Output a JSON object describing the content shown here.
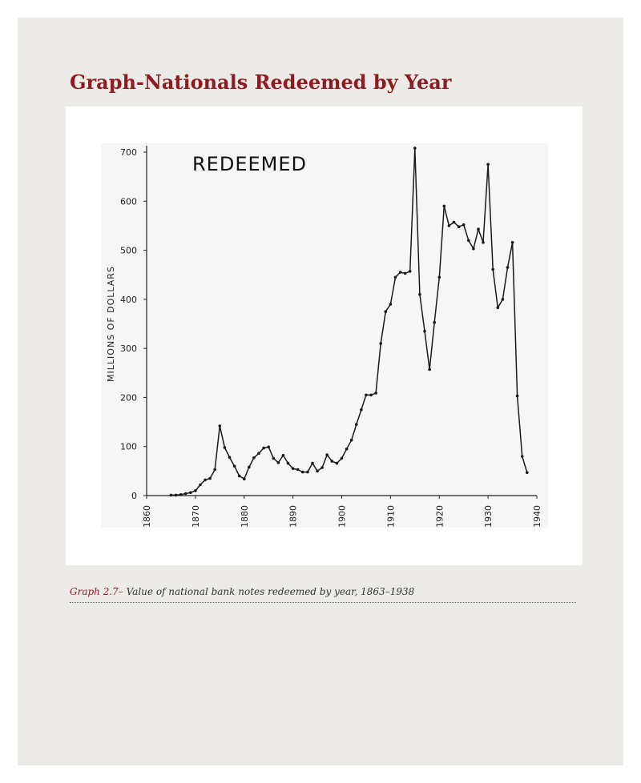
{
  "page": {
    "title": "Graph-Nationals Redeemed by Year",
    "caption_label": "Graph 2.7–",
    "caption_text": " Value of national bank notes redeemed by year, 1863–1938",
    "accent_color": "#8e1b1f",
    "panel_color": "#ecebe7"
  },
  "chart_data": {
    "type": "line",
    "title": "REDEEMED",
    "ylabel": "MILLIONS OF DOLLARS",
    "xlabel": "",
    "xlim": [
      1860,
      1940
    ],
    "ylim": [
      0,
      700
    ],
    "xticks": [
      1860,
      1870,
      1880,
      1890,
      1900,
      1910,
      1920,
      1930,
      1940
    ],
    "yticks": [
      0,
      100,
      200,
      300,
      400,
      500,
      600,
      700
    ],
    "grid": false,
    "series": [
      {
        "x": [
          1865,
          1866,
          1867,
          1868,
          1869,
          1870,
          1871,
          1872,
          1873,
          1874,
          1875,
          1876,
          1877,
          1878,
          1879,
          1880,
          1881,
          1882,
          1883,
          1884,
          1885,
          1886,
          1887,
          1888,
          1889,
          1890,
          1891,
          1892,
          1893,
          1894,
          1895,
          1896,
          1897,
          1898,
          1899,
          1900,
          1901,
          1902,
          1903,
          1904,
          1905,
          1906,
          1907,
          1908,
          1909,
          1910,
          1911,
          1912,
          1913,
          1914,
          1915,
          1916,
          1917,
          1918,
          1919,
          1920,
          1921,
          1922,
          1923,
          1924,
          1925,
          1926,
          1927,
          1928,
          1929,
          1930,
          1931,
          1932,
          1933,
          1934,
          1935,
          1936,
          1937,
          1938
        ],
        "y": [
          1,
          1,
          2,
          4,
          6,
          10,
          22,
          32,
          35,
          53,
          142,
          98,
          78,
          60,
          40,
          34,
          58,
          77,
          86,
          97,
          99,
          76,
          67,
          82,
          66,
          55,
          53,
          48,
          48,
          66,
          50,
          57,
          83,
          70,
          66,
          76,
          95,
          113,
          145,
          175,
          205,
          205,
          209,
          310,
          375,
          390,
          445,
          455,
          453,
          457,
          708,
          410,
          335,
          257,
          353,
          445,
          590,
          550,
          557,
          548,
          552,
          520,
          503,
          543,
          516,
          675,
          461,
          383,
          400,
          465,
          516,
          203,
          80,
          47
        ]
      }
    ]
  }
}
